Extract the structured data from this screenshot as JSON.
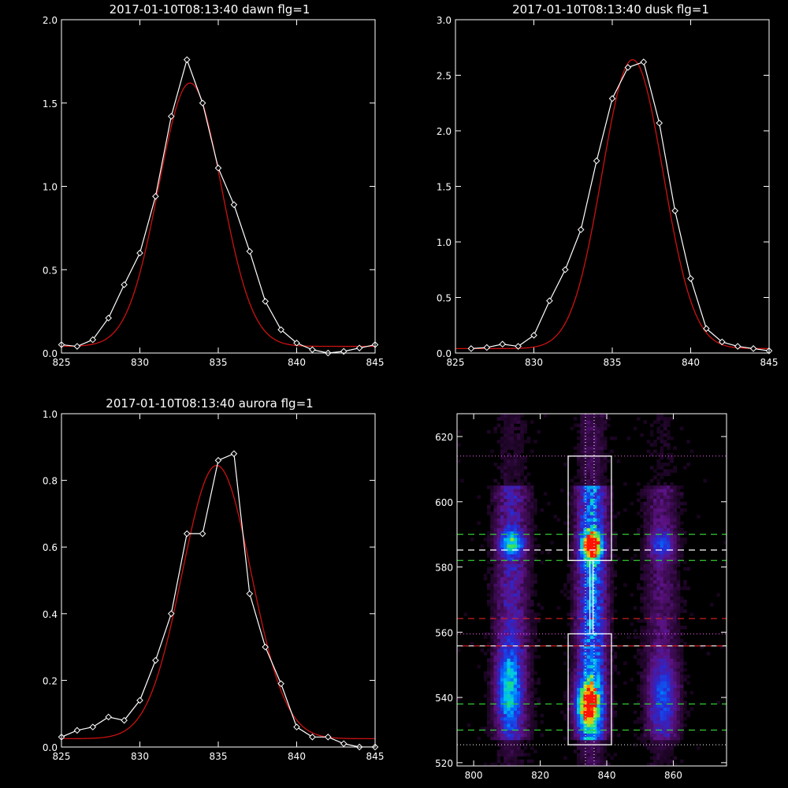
{
  "colors": {
    "background": "#000000",
    "foreground": "#ffffff",
    "fit_curve": "#cc1111",
    "green_dashes": "#33cc33",
    "red_dashes": "#dd2222",
    "dotted_lines": "#ff66ff"
  },
  "chart_data": [
    {
      "id": "dawn",
      "type": "line",
      "title": "2017-01-10T08:13:40 dawn flg=1",
      "xlabel": "",
      "ylabel": "",
      "xlim": [
        825,
        845
      ],
      "ylim": [
        0,
        2.0
      ],
      "xticks": [
        825,
        830,
        835,
        840,
        845
      ],
      "xtick_labels": [
        "825",
        "830",
        "835",
        "840",
        "845"
      ],
      "yticks": [
        0,
        0.5,
        1.0,
        1.5,
        2.0
      ],
      "ytick_labels": [
        "0.0",
        "0.5",
        "1.0",
        "1.5",
        "2.0"
      ],
      "grid": false,
      "series": [
        {
          "style": "white line with diamond markers",
          "x": [
            825,
            826,
            827,
            828,
            829,
            830,
            831,
            832,
            833,
            834,
            835,
            836,
            837,
            838,
            839,
            840,
            841,
            842,
            843,
            844,
            845
          ],
          "y": [
            0.05,
            0.04,
            0.08,
            0.21,
            0.41,
            0.6,
            0.94,
            1.42,
            1.76,
            1.5,
            1.11,
            0.89,
            0.61,
            0.31,
            0.14,
            0.06,
            0.02,
            0.0,
            0.01,
            0.03,
            0.05
          ]
        },
        {
          "style": "red gaussian fit",
          "gaussian": {
            "amplitude": 1.58,
            "center": 833.2,
            "sigma": 2.0,
            "baseline": 0.04
          }
        }
      ]
    },
    {
      "id": "dusk",
      "type": "line",
      "title": "2017-01-10T08:13:40 dusk flg=1",
      "xlabel": "",
      "ylabel": "",
      "xlim": [
        825,
        845
      ],
      "ylim": [
        0,
        3.0
      ],
      "xticks": [
        825,
        830,
        835,
        840,
        845
      ],
      "xtick_labels": [
        "825",
        "830",
        "835",
        "840",
        "845"
      ],
      "yticks": [
        0,
        0.5,
        1.0,
        1.5,
        2.0,
        2.5,
        3.0
      ],
      "ytick_labels": [
        "0.0",
        "0.5",
        "1.0",
        "1.5",
        "2.0",
        "2.5",
        "3.0"
      ],
      "grid": false,
      "series": [
        {
          "style": "white line with diamond markers",
          "x": [
            826,
            827,
            828,
            829,
            830,
            831,
            832,
            833,
            834,
            835,
            836,
            837,
            838,
            839,
            840,
            841,
            842,
            843,
            844,
            845
          ],
          "y": [
            0.04,
            0.05,
            0.08,
            0.06,
            0.16,
            0.47,
            0.75,
            1.11,
            1.73,
            2.29,
            2.57,
            2.62,
            2.07,
            1.28,
            0.67,
            0.22,
            0.1,
            0.06,
            0.04,
            0.02
          ]
        },
        {
          "style": "red gaussian fit",
          "gaussian": {
            "amplitude": 2.6,
            "center": 836.3,
            "sigma": 1.95,
            "baseline": 0.04
          }
        }
      ]
    },
    {
      "id": "aurora",
      "type": "line",
      "title": "2017-01-10T08:13:40 aurora flg=1",
      "xlabel": "",
      "ylabel": "",
      "xlim": [
        825,
        845
      ],
      "ylim": [
        0,
        1.0
      ],
      "xticks": [
        825,
        830,
        835,
        840,
        845
      ],
      "xtick_labels": [
        "825",
        "830",
        "835",
        "840",
        "845"
      ],
      "yticks": [
        0,
        0.2,
        0.4,
        0.6,
        0.8,
        1.0
      ],
      "ytick_labels": [
        "0.0",
        "0.2",
        "0.4",
        "0.6",
        "0.8",
        "1.0"
      ],
      "grid": false,
      "series": [
        {
          "style": "white line with diamond markers",
          "x": [
            825,
            826,
            827,
            828,
            829,
            830,
            831,
            832,
            833,
            834,
            835,
            836,
            837,
            838,
            839,
            840,
            841,
            842,
            843,
            844,
            845
          ],
          "y": [
            0.03,
            0.05,
            0.06,
            0.09,
            0.08,
            0.14,
            0.26,
            0.4,
            0.64,
            0.64,
            0.86,
            0.88,
            0.46,
            0.3,
            0.19,
            0.06,
            0.03,
            0.03,
            0.01,
            0.0,
            0.0
          ]
        },
        {
          "style": "red gaussian fit",
          "gaussian": {
            "amplitude": 0.82,
            "center": 834.9,
            "sigma": 2.2,
            "baseline": 0.025
          }
        }
      ]
    },
    {
      "id": "image",
      "type": "heatmap",
      "title": "",
      "xlabel": "",
      "ylabel": "",
      "xlim": [
        795,
        876
      ],
      "ylim": [
        519,
        627
      ],
      "xticks": [
        800,
        820,
        840,
        860
      ],
      "xtick_labels": [
        "800",
        "820",
        "840",
        "860"
      ],
      "yticks": [
        520,
        540,
        560,
        580,
        600,
        620
      ],
      "ytick_labels": [
        "520",
        "540",
        "560",
        "580",
        "600",
        "620"
      ],
      "grid": false,
      "colormap": "black-purple-blue-cyan-green-yellow-red",
      "emission_columns": [
        {
          "x_center": 811.5,
          "x_width": 3.5,
          "strength": 0.35
        },
        {
          "x_center": 835.5,
          "x_width": 3.0,
          "strength": 0.65
        },
        {
          "x_center": 856.5,
          "x_width": 3.5,
          "strength": 0.22
        }
      ],
      "hotspots": [
        {
          "x": 835.6,
          "y": 586.5,
          "peak": 1.0,
          "sx": 2.0,
          "sy": 3.0
        },
        {
          "x": 811.5,
          "y": 587.5,
          "peak": 0.55,
          "sx": 2.5,
          "sy": 2.5
        },
        {
          "x": 834.5,
          "y": 538.0,
          "peak": 0.85,
          "sx": 2.5,
          "sy": 5.0
        },
        {
          "x": 810.5,
          "y": 543.0,
          "peak": 0.45,
          "sx": 2.5,
          "sy": 8.0
        },
        {
          "x": 856.5,
          "y": 587.0,
          "peak": 0.3,
          "sx": 2.5,
          "sy": 3.0
        },
        {
          "x": 857.0,
          "y": 540.0,
          "peak": 0.3,
          "sx": 3.0,
          "sy": 8.0
        }
      ],
      "boxes": [
        {
          "x0": 828.4,
          "x1": 841.4,
          "y0": 582.0,
          "y1": 614.0
        },
        {
          "x0": 828.4,
          "x1": 841.4,
          "y0": 525.5,
          "y1": 559.5
        }
      ],
      "center_line": {
        "x": 835.4,
        "y0": 559.5,
        "y1": 582.0
      },
      "vertical_dotted_lines": [
        833.6,
        836.2
      ],
      "horizontal_lines": [
        {
          "y": 614.0,
          "style": "dotted",
          "color": "magenta"
        },
        {
          "y": 590.0,
          "style": "dashed",
          "color": "green"
        },
        {
          "y": 585.2,
          "style": "dashed",
          "color": "white"
        },
        {
          "y": 582.0,
          "style": "dashed",
          "color": "green"
        },
        {
          "y": 564.2,
          "style": "dashed",
          "color": "red"
        },
        {
          "y": 559.5,
          "style": "dotted",
          "color": "magenta"
        },
        {
          "y": 555.8,
          "style": "dashed",
          "color": "redwhite"
        },
        {
          "y": 538.0,
          "style": "dashed",
          "color": "green"
        },
        {
          "y": 530.0,
          "style": "dashed",
          "color": "green"
        },
        {
          "y": 525.5,
          "style": "dotted",
          "color": "white"
        }
      ]
    }
  ]
}
